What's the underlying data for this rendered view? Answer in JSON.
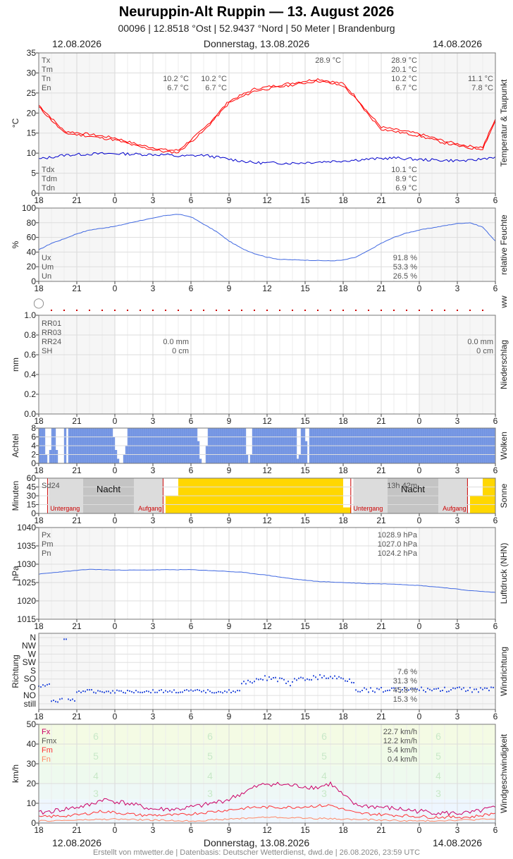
{
  "header": {
    "title": "Neuruppin-Alt Ruppin  —  13. August 2026",
    "subtitle": "00096  |  12.8518 °Ost  |  52.9437 °Nord  |  50 Meter  |  Brandenburg",
    "date_left": "12.08.2026",
    "date_center": "Donnerstag, 13.08.2026",
    "date_right": "14.08.2026"
  },
  "footer": "Erstellt von mtwetter.de | Datenbasis: Deutscher Wetterdienst, dwd.de | 26.08.2026, 23:59 UTC",
  "x_ticks": [
    "18",
    "21",
    "0",
    "3",
    "6",
    "9",
    "12",
    "15",
    "18",
    "21",
    "0",
    "3",
    "6"
  ],
  "colors": {
    "temp": "#ff0000",
    "dew": "#0000cc",
    "humidity": "#4169e1",
    "clouds": "#7b9be6",
    "sun": "#ffd700",
    "pressure": "#4169e1",
    "wind_fx": "#cc0066",
    "wind_fm": "#ff3333",
    "wind_fn": "#ff8866"
  },
  "chart_data": [
    {
      "id": "temp",
      "type": "line",
      "ylabel": "°C",
      "side_label": "Temperatur & Taupunkt",
      "ylim": [
        0,
        35
      ],
      "yticks": [
        "0",
        "5",
        "10",
        "15",
        "20",
        "25",
        "30",
        "35"
      ],
      "legend_left": [
        "Tx",
        "Tm",
        "Tn",
        "En"
      ],
      "legend_left2": [
        "Tdx",
        "Tdm",
        "Tdn"
      ],
      "annotations": {
        "tx_mid": "28.9 °C",
        "tn_a": "10.2 °C",
        "en_a": "6.7 °C",
        "tn_b": "10.2 °C",
        "en_b": "6.7 °C",
        "tn_c": "11.1 °C",
        "en_c": "7.8 °C"
      },
      "stats": [
        "28.9 °C",
        "20.1 °C",
        "10.2 °C",
        "6.7 °C"
      ],
      "stats2": [
        "10.1 °C",
        "8.9 °C",
        "6.9 °C"
      ],
      "series": [
        {
          "name": "Tx",
          "points": [
            [
              0,
              22
            ],
            [
              2,
              15.5
            ],
            [
              4,
              14.7
            ],
            [
              6,
              13.8
            ],
            [
              8,
              12
            ],
            [
              10,
              10.8
            ],
            [
              11,
              10.7
            ],
            [
              13,
              16
            ],
            [
              15,
              23
            ],
            [
              17,
              26
            ],
            [
              20,
              27.5
            ],
            [
              22,
              28.5
            ],
            [
              24,
              27.3
            ],
            [
              25,
              24
            ],
            [
              26,
              20
            ],
            [
              27,
              16.5
            ],
            [
              30,
              14.8
            ],
            [
              32,
              13
            ],
            [
              34,
              11.7
            ],
            [
              35,
              11.5
            ],
            [
              36,
              18.5
            ]
          ]
        },
        {
          "name": "Tn",
          "points": [
            [
              0,
              21.5
            ],
            [
              2,
              15
            ],
            [
              4,
              14.2
            ],
            [
              6,
              13.3
            ],
            [
              8,
              11.5
            ],
            [
              10,
              10.3
            ],
            [
              11,
              10.2
            ],
            [
              13,
              15.5
            ],
            [
              15,
              22.5
            ],
            [
              17,
              25.5
            ],
            [
              20,
              27
            ],
            [
              22,
              28
            ],
            [
              24,
              26.8
            ],
            [
              25,
              23.5
            ],
            [
              26,
              19.5
            ],
            [
              27,
              16
            ],
            [
              30,
              14.3
            ],
            [
              32,
              12.5
            ],
            [
              34,
              11.2
            ],
            [
              35,
              11.1
            ],
            [
              36,
              18
            ]
          ]
        },
        {
          "name": "Td",
          "points": [
            [
              0,
              8.5
            ],
            [
              2,
              9.5
            ],
            [
              4,
              9.8
            ],
            [
              6,
              9.9
            ],
            [
              8,
              9.7
            ],
            [
              10,
              9.6
            ],
            [
              11,
              9.2
            ],
            [
              13,
              9.5
            ],
            [
              15,
              8.5
            ],
            [
              17,
              7.6
            ],
            [
              20,
              7.5
            ],
            [
              22,
              7.8
            ],
            [
              24,
              8.1
            ],
            [
              26,
              8.5
            ],
            [
              28,
              8.8
            ],
            [
              30,
              8.4
            ],
            [
              32,
              8.2
            ],
            [
              34,
              8.1
            ],
            [
              36,
              9.1
            ]
          ]
        }
      ]
    },
    {
      "id": "humidity",
      "type": "line",
      "ylabel": "%",
      "side_label": "relative Feuchte",
      "ylim": [
        0,
        100
      ],
      "yticks": [
        "0",
        "20",
        "40",
        "60",
        "80",
        "100"
      ],
      "legend_left": [
        "Ux",
        "Um",
        "Un"
      ],
      "stats": [
        "91.8 %",
        "53.3 %",
        "26.5 %"
      ],
      "series": [
        {
          "name": "U",
          "points": [
            [
              0,
              43
            ],
            [
              1,
              52
            ],
            [
              2,
              58
            ],
            [
              3,
              65
            ],
            [
              4,
              70
            ],
            [
              6,
              75
            ],
            [
              8,
              83
            ],
            [
              9,
              86
            ],
            [
              10,
              90
            ],
            [
              11,
              91.5
            ],
            [
              12,
              88
            ],
            [
              13,
              78
            ],
            [
              14,
              68
            ],
            [
              15,
              55
            ],
            [
              16,
              45
            ],
            [
              17,
              38
            ],
            [
              18,
              33
            ],
            [
              19,
              30
            ],
            [
              21,
              29
            ],
            [
              23,
              28
            ],
            [
              24,
              29
            ],
            [
              25,
              33
            ],
            [
              26,
              42
            ],
            [
              27,
              52
            ],
            [
              28,
              60
            ],
            [
              29,
              66
            ],
            [
              30,
              70
            ],
            [
              31,
              73
            ],
            [
              32,
              76
            ],
            [
              33,
              79
            ],
            [
              34,
              80
            ],
            [
              35,
              74
            ],
            [
              36,
              55
            ]
          ]
        }
      ]
    },
    {
      "id": "ww",
      "type": "scatter",
      "side_label": "ww",
      "marker": "◯"
    },
    {
      "id": "precip",
      "type": "line",
      "ylabel": "mm",
      "side_label": "Niederschlag",
      "ylim": [
        0,
        1
      ],
      "yticks": [
        "0.0",
        "0.2",
        "0.4",
        "0.6",
        "0.8",
        "1.0"
      ],
      "legend_left": [
        "RR01",
        "RR03",
        "RR24",
        "SH"
      ],
      "annotations": {
        "rr24_a": "0.0 mm",
        "sh_a": "0 cm",
        "rr24_b": "0.0 mm",
        "sh_b": "0 cm"
      }
    },
    {
      "id": "clouds",
      "type": "bar",
      "ylabel": "Achtel",
      "side_label": "Wolken",
      "ylim": [
        0,
        8
      ],
      "yticks": [
        "0",
        "2",
        "4",
        "6",
        "8"
      ],
      "clear_windows": [
        [
          0.4,
          0.9,
          3
        ],
        [
          1.3,
          2.0,
          4
        ],
        [
          2.1,
          2.3,
          5
        ],
        [
          5.8,
          7.0,
          2
        ],
        [
          12.5,
          13.2,
          3
        ],
        [
          16.2,
          16.8,
          2
        ],
        [
          20.2,
          20.6,
          2
        ],
        [
          21.0,
          21.3,
          3
        ]
      ]
    },
    {
      "id": "sun",
      "type": "bar",
      "ylabel": "Minuten",
      "side_label": "Sonne",
      "ylim": [
        0,
        60
      ],
      "yticks": [
        "0",
        "15",
        "30",
        "45",
        "60"
      ],
      "labels": {
        "sd24": "Sd24",
        "night": "Nacht",
        "sunset": "Untergang",
        "sunrise": "Aufgang",
        "sd24_value": "13h 42m"
      },
      "values": [
        [
          10,
          30
        ],
        [
          11,
          60
        ],
        [
          24,
          60
        ],
        [
          24.5,
          10
        ],
        [
          34,
          30
        ],
        [
          35,
          60
        ]
      ]
    },
    {
      "id": "pressure",
      "type": "line",
      "ylabel": "hPa",
      "side_label": "Luftdruck (NHN)",
      "ylim": [
        1015,
        1040
      ],
      "yticks": [
        "1015",
        "1020",
        "1025",
        "1030",
        "1035",
        "1040"
      ],
      "legend_left": [
        "Px",
        "Pm",
        "Pn"
      ],
      "stats": [
        "1028.9 hPa",
        "1027.0 hPa",
        "1024.2 hPa"
      ],
      "series": [
        {
          "name": "P",
          "points": [
            [
              0,
              1027.3
            ],
            [
              2,
              1028
            ],
            [
              4,
              1028.6
            ],
            [
              6,
              1028.4
            ],
            [
              8,
              1028.4
            ],
            [
              10,
              1028.5
            ],
            [
              12,
              1028.5
            ],
            [
              14,
              1028.2
            ],
            [
              16,
              1027.8
            ],
            [
              18,
              1027
            ],
            [
              20,
              1026
            ],
            [
              22,
              1025.3
            ],
            [
              24,
              1025
            ],
            [
              26,
              1024.7
            ],
            [
              28,
              1024.6
            ],
            [
              30,
              1024.2
            ],
            [
              32,
              1023.6
            ],
            [
              34,
              1022.8
            ],
            [
              36,
              1022.3
            ]
          ]
        }
      ]
    },
    {
      "id": "wind_dir",
      "type": "scatter",
      "ylabel": "Richtung",
      "side_label": "Windrichtung",
      "categories": [
        "N",
        "NW",
        "W",
        "SW",
        "S",
        "SO",
        "O",
        "NO",
        "still"
      ],
      "stats": [
        "7.6 %",
        "31.3 %",
        "45.8 %",
        "15.3 %"
      ]
    },
    {
      "id": "wind_speed",
      "type": "line",
      "ylabel": "km/h",
      "side_label": "Windgeschwindigkeit",
      "ylim": [
        0,
        50
      ],
      "yticks": [
        "0",
        "10",
        "20",
        "30",
        "40",
        "50"
      ],
      "legend_left": [
        "Fx",
        "Fmx",
        "Fm",
        "Fn"
      ],
      "stats": [
        "22.7 km/h",
        "12.2 km/h",
        "5.4 km/h",
        "0.4 km/h"
      ],
      "beaufort": [
        "3",
        "4",
        "5",
        "6"
      ],
      "series": [
        {
          "name": "Fx",
          "points": [
            [
              0,
              5
            ],
            [
              2,
              7
            ],
            [
              4,
              9
            ],
            [
              5,
              12
            ],
            [
              7,
              10
            ],
            [
              9,
              7
            ],
            [
              11,
              7
            ],
            [
              13,
              9
            ],
            [
              15,
              12
            ],
            [
              16,
              15
            ],
            [
              17,
              18
            ],
            [
              18,
              20
            ],
            [
              20,
              19
            ],
            [
              22,
              18
            ],
            [
              23,
              20
            ],
            [
              24,
              14
            ],
            [
              25,
              9
            ],
            [
              27,
              8
            ],
            [
              30,
              6
            ],
            [
              32,
              5
            ],
            [
              34,
              5
            ],
            [
              36,
              8
            ]
          ]
        },
        {
          "name": "Fm",
          "points": [
            [
              0,
              3
            ],
            [
              3,
              4
            ],
            [
              5,
              6
            ],
            [
              8,
              4
            ],
            [
              11,
              4
            ],
            [
              14,
              6
            ],
            [
              17,
              8
            ],
            [
              20,
              8
            ],
            [
              23,
              9
            ],
            [
              25,
              5
            ],
            [
              28,
              4
            ],
            [
              31,
              3
            ],
            [
              34,
              3
            ],
            [
              36,
              5
            ]
          ]
        },
        {
          "name": "Fn",
          "points": [
            [
              0,
              1
            ],
            [
              6,
              2
            ],
            [
              12,
              1
            ],
            [
              18,
              3
            ],
            [
              24,
              2
            ],
            [
              30,
              1
            ],
            [
              36,
              2
            ]
          ]
        }
      ]
    }
  ]
}
